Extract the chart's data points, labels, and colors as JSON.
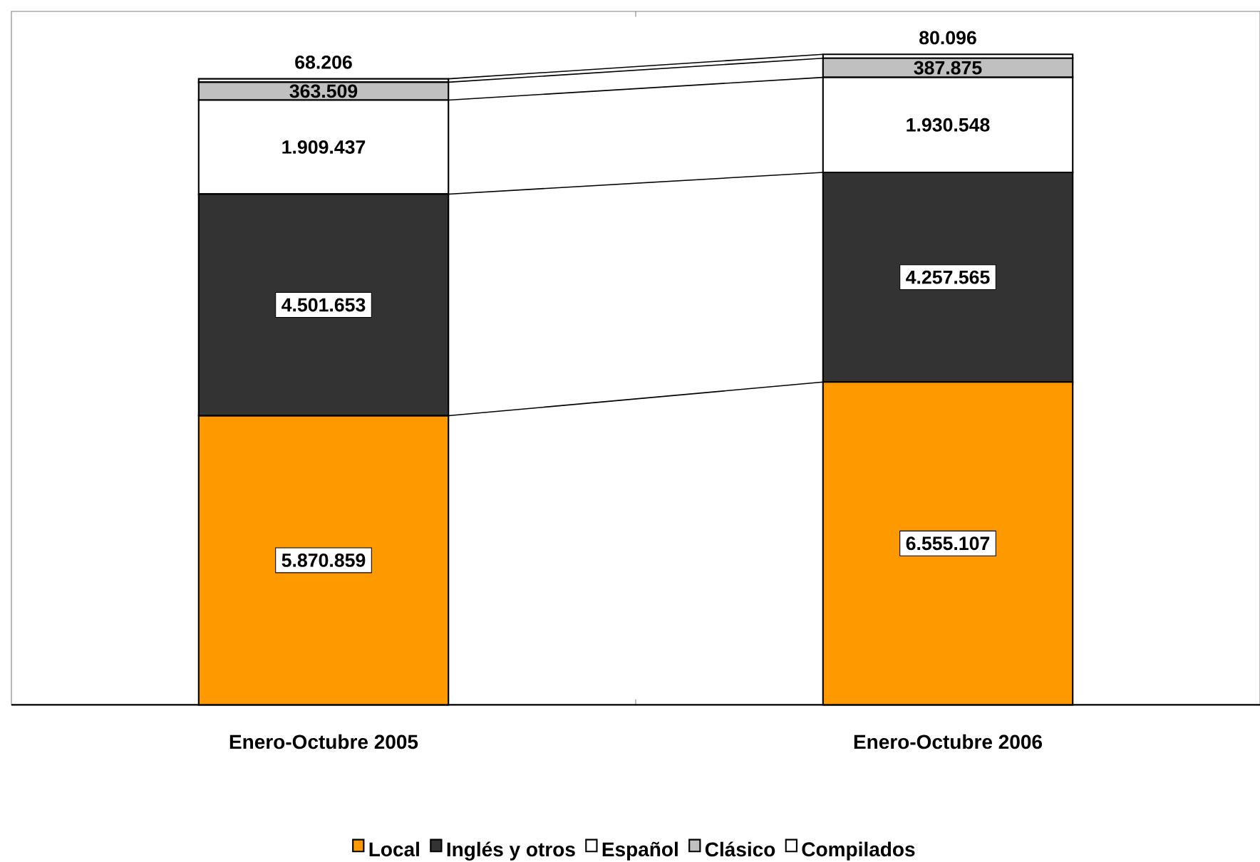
{
  "chart_data": {
    "type": "bar",
    "stacked": true,
    "legend": "bottom",
    "categories": [
      "Enero-Octubre 2005",
      "Enero-Octubre 2006"
    ],
    "series": [
      {
        "name": "Local",
        "color": "#ff9900",
        "values": [
          5870859,
          6555107
        ],
        "value_labels": [
          "5.870.859",
          "6.555.107"
        ]
      },
      {
        "name": "Inglés y otros",
        "color": "#333333",
        "values": [
          4501653,
          4257565
        ],
        "value_labels": [
          "4.501.653",
          "4.257.565"
        ]
      },
      {
        "name": "Español",
        "color": "#ffffff",
        "values": [
          1909437,
          1930548
        ],
        "value_labels": [
          "1.909.437",
          "1.930.548"
        ]
      },
      {
        "name": "Clásico",
        "color": "#c0c0c0",
        "values": [
          363509,
          387875
        ],
        "value_labels": [
          "363.509",
          "387.875"
        ]
      },
      {
        "name": "Compilados",
        "color": "#ffffff",
        "values": [
          68206,
          80096
        ],
        "value_labels": [
          "68.206",
          "80.096"
        ]
      }
    ]
  }
}
